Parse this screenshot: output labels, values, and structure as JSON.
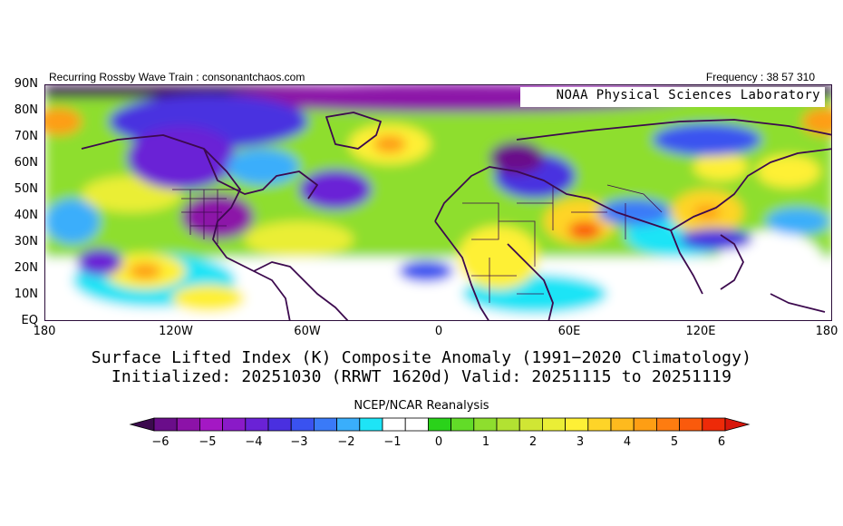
{
  "header": {
    "left_text": "Recurring Rossby Wave Train : consonantchaos.com",
    "right_text": "Frequency : 38 57 310",
    "lab_label": "NOAA Physical Sciences Laboratory"
  },
  "map": {
    "lat_labels": [
      "90N",
      "80N",
      "70N",
      "60N",
      "50N",
      "40N",
      "30N",
      "20N",
      "10N",
      "EQ"
    ],
    "lon_labels": [
      "180",
      "120W",
      "60W",
      "0",
      "60E",
      "120E",
      "180"
    ]
  },
  "titles": {
    "line1": "Surface Lifted Index (K) Composite Anomaly (1991−2020 Climatology)",
    "line2": "Initialized: 20251030 (RRWT 1620d) Valid: 20251115 to 20251119"
  },
  "colorbar": {
    "title": "NCEP/NCAR Reanalysis",
    "tick_labels": [
      "−6",
      "−5",
      "−4",
      "−3",
      "−2",
      "−1",
      "0",
      "1",
      "2",
      "3",
      "4",
      "5",
      "6"
    ],
    "colors": [
      "#3c0a4e",
      "#6a0d8a",
      "#8c12a8",
      "#a418c4",
      "#8a1ac8",
      "#6a22d6",
      "#4a30e0",
      "#3a52f0",
      "#3a7af8",
      "#3aaefb",
      "#1ee4f6",
      "#ffffff",
      "#ffffff",
      "#2ad21a",
      "#62dc28",
      "#8ede2e",
      "#b2e232",
      "#d0e634",
      "#eaee36",
      "#fef036",
      "#fed428",
      "#feba1e",
      "#fe9e14",
      "#fe7c10",
      "#fa5a0c",
      "#ee2a08",
      "#d8160a"
    ]
  }
}
